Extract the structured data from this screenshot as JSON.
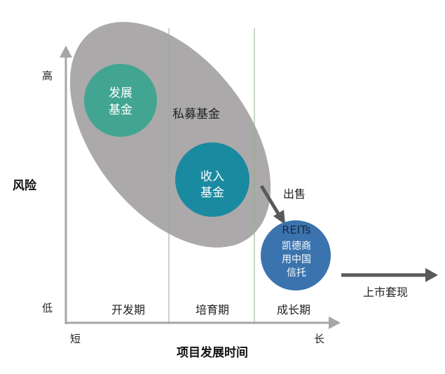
{
  "y_axis": {
    "label": "风险",
    "high": "高",
    "low": "低"
  },
  "x_axis": {
    "label": "项目发展时间",
    "short": "短",
    "long": "长"
  },
  "phases": [
    "开发期",
    "培育期",
    "成长期"
  ],
  "private_fund": {
    "label": "私募基金",
    "color": "#a9a6a7"
  },
  "development_fund": {
    "line1": "发展",
    "line2": "基金",
    "color": "#41a592"
  },
  "income_fund": {
    "line1": "收入",
    "line2": "基金",
    "color": "#1a8aa1"
  },
  "sale_label": "出售",
  "reits": {
    "title": "REITs",
    "line1": "凯德商",
    "line2": "用中国",
    "line3": "信托",
    "color": "#3b73ae"
  },
  "ipo_label": "上市套现",
  "colors": {
    "axis": "#a6a6a6",
    "divider": "#8fb08a",
    "arrow": "#595959"
  }
}
